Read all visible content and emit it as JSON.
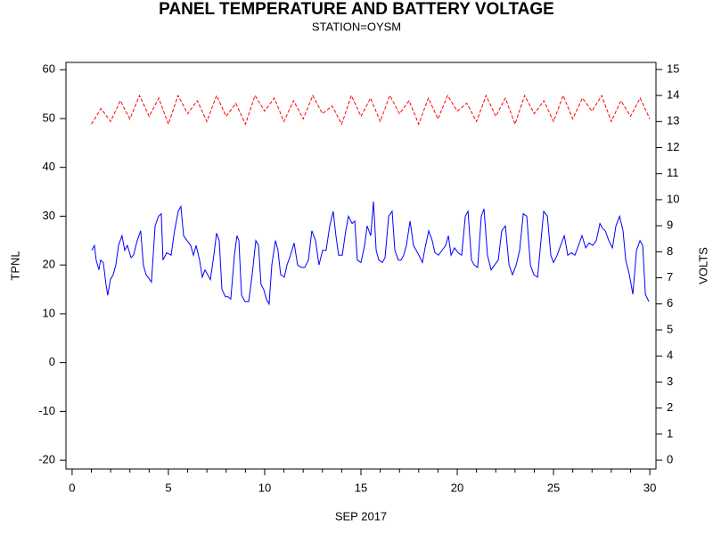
{
  "chart_data": {
    "type": "line",
    "title": "PANEL TEMPERATURE AND BATTERY VOLTAGE",
    "subtitle": "STATION=OYSM",
    "xlabel": "SEP 2017",
    "ylabel": "TPNL",
    "y2label": "VOLTS",
    "xlim": [
      -0.32,
      30.32
    ],
    "xticks": [
      0,
      5,
      10,
      15,
      20,
      25,
      30
    ],
    "xminorticks": [
      1,
      2,
      3,
      4,
      6,
      7,
      8,
      9,
      11,
      12,
      13,
      14,
      16,
      17,
      18,
      19,
      21,
      22,
      23,
      24,
      26,
      27,
      28,
      29
    ],
    "ylim": [
      -21.8,
      61.5
    ],
    "yticks": [
      -20,
      -10,
      0,
      10,
      20,
      30,
      40,
      50,
      60
    ],
    "y2lim": [
      -0.34,
      15.27
    ],
    "y2ticks": [
      0,
      1,
      2,
      3,
      4,
      5,
      6,
      7,
      8,
      9,
      10,
      11,
      12,
      13,
      14,
      15
    ],
    "series": [
      {
        "color": "#0000ff",
        "axis": "y",
        "dash": false,
        "x": [
          1.02,
          1.16,
          1.25,
          1.39,
          1.48,
          1.62,
          1.76,
          1.85,
          1.99,
          2.13,
          2.27,
          2.41,
          2.59,
          2.73,
          2.87,
          3.06,
          3.19,
          3.38,
          3.56,
          3.7,
          3.84,
          4.03,
          4.12,
          4.31,
          4.49,
          4.63,
          4.72,
          4.91,
          5.14,
          5.32,
          5.51,
          5.65,
          5.79,
          5.97,
          6.16,
          6.3,
          6.44,
          6.62,
          6.76,
          6.9,
          7.04,
          7.18,
          7.36,
          7.5,
          7.64,
          7.78,
          7.96,
          8.1,
          8.24,
          8.43,
          8.56,
          8.66,
          8.8,
          8.98,
          9.17,
          9.35,
          9.54,
          9.68,
          9.81,
          9.95,
          10.09,
          10.23,
          10.37,
          10.56,
          10.69,
          10.83,
          11.02,
          11.16,
          11.34,
          11.53,
          11.71,
          11.9,
          12.08,
          12.27,
          12.45,
          12.64,
          12.82,
          13.01,
          13.19,
          13.38,
          13.56,
          13.7,
          13.84,
          14.03,
          14.21,
          14.35,
          14.54,
          14.68,
          14.81,
          15.0,
          15.19,
          15.32,
          15.51,
          15.65,
          15.79,
          15.93,
          16.11,
          16.25,
          16.44,
          16.62,
          16.76,
          16.94,
          17.08,
          17.22,
          17.36,
          17.55,
          17.73,
          17.87,
          18.01,
          18.19,
          18.33,
          18.52,
          18.7,
          18.84,
          19.03,
          19.21,
          19.4,
          19.54,
          19.68,
          19.86,
          20.05,
          20.23,
          20.42,
          20.56,
          20.74,
          20.88,
          21.06,
          21.25,
          21.39,
          21.57,
          21.76,
          21.94,
          22.13,
          22.31,
          22.5,
          22.69,
          22.87,
          23.06,
          23.24,
          23.43,
          23.61,
          23.8,
          23.98,
          24.17,
          24.35,
          24.49,
          24.68,
          24.86,
          25.0,
          25.19,
          25.37,
          25.56,
          25.74,
          25.93,
          26.11,
          26.3,
          26.48,
          26.67,
          26.85,
          27.04,
          27.22,
          27.41,
          27.55,
          27.69,
          27.87,
          28.06,
          28.24,
          28.43,
          28.61,
          28.75,
          28.94,
          29.12,
          29.31,
          29.49,
          29.63,
          29.77,
          29.95
        ],
        "values": [
          23,
          24,
          21,
          19,
          21,
          20.5,
          16,
          13.8,
          17,
          18,
          20,
          24,
          26,
          23,
          24,
          21.5,
          22,
          25,
          27,
          20,
          18,
          17,
          16.5,
          28,
          30,
          30.5,
          21,
          22.5,
          22,
          27,
          31,
          32,
          26,
          25,
          24,
          22,
          24,
          21,
          17.5,
          19,
          18,
          17,
          22,
          26.5,
          25,
          15,
          13.5,
          13.5,
          13,
          22,
          26,
          25,
          13.8,
          12.5,
          12.5,
          18,
          25,
          24,
          16,
          15,
          13,
          12,
          20,
          25,
          23,
          18,
          17.5,
          20,
          22,
          24.5,
          20,
          19.5,
          19.5,
          21,
          27,
          25,
          20,
          23,
          23,
          28,
          31,
          26,
          22,
          22,
          27,
          30,
          28.5,
          29,
          21,
          20.5,
          24,
          28,
          26,
          33,
          23,
          21,
          20.5,
          21.5,
          30,
          31,
          23,
          21,
          21,
          22,
          24,
          29,
          24,
          23,
          22,
          20.5,
          23.5,
          27,
          25,
          22.5,
          22,
          23,
          24,
          26,
          22,
          23.5,
          22.5,
          22,
          30,
          31,
          21,
          20,
          19.5,
          30,
          31.5,
          22,
          19,
          20,
          21,
          27,
          28,
          20,
          18,
          20,
          23,
          30.5,
          30,
          20,
          18,
          17.5,
          25,
          31,
          30,
          22,
          20.5,
          22,
          24,
          26,
          22,
          22.5,
          22,
          24,
          26,
          23.5,
          24.5,
          24,
          25,
          28.5,
          27.5,
          27,
          25,
          23.5,
          28,
          30,
          27,
          21,
          18,
          14,
          23,
          25,
          24,
          14,
          12.5
        ]
      },
      {
        "color": "#ff0000",
        "axis": "y2",
        "dash": true,
        "x": [
          1,
          1.5,
          2,
          2.5,
          3,
          3.5,
          4,
          4.5,
          5,
          5.5,
          6,
          6.5,
          7,
          7.5,
          8,
          8.5,
          9,
          9.5,
          10,
          10.5,
          11,
          11.5,
          12,
          12.5,
          13,
          13.5,
          14,
          14.5,
          15,
          15.5,
          16,
          16.5,
          17,
          17.5,
          18,
          18.5,
          19,
          19.5,
          20,
          20.5,
          21,
          21.5,
          22,
          22.5,
          23,
          23.5,
          24,
          24.5,
          25,
          25.5,
          26,
          26.5,
          27,
          27.5,
          28,
          28.5,
          29,
          29.5,
          30
        ],
        "values": [
          12.9,
          13.5,
          13.0,
          13.8,
          13.1,
          14.0,
          13.2,
          13.9,
          12.9,
          14.0,
          13.3,
          13.8,
          13.0,
          14.0,
          13.2,
          13.7,
          12.9,
          14.0,
          13.4,
          13.9,
          13.0,
          13.8,
          13.1,
          14.0,
          13.3,
          13.6,
          12.9,
          14.0,
          13.2,
          13.9,
          13.0,
          14.0,
          13.3,
          13.8,
          12.9,
          13.9,
          13.1,
          14.0,
          13.4,
          13.7,
          13.0,
          14.0,
          13.2,
          13.9,
          12.9,
          14.0,
          13.3,
          13.8,
          13.0,
          14.0,
          13.1,
          13.9,
          13.4,
          14.0,
          13.0,
          13.8,
          13.2,
          13.9,
          13.1
        ]
      }
    ]
  }
}
